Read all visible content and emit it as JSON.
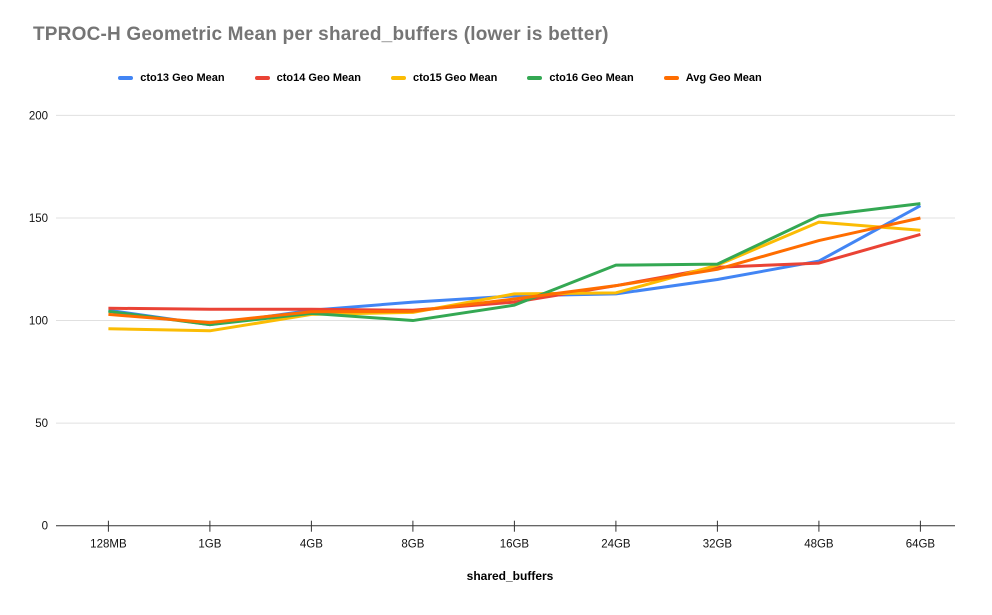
{
  "title": "TPROC-H Geometric Mean per shared_buffers (lower is better)",
  "colors": {
    "title": "#757575",
    "gridline": "#e0e0e0",
    "axis": "#333333",
    "axis_label": "#111111",
    "background": "#ffffff"
  },
  "chart_data": {
    "type": "line",
    "title": "TPROC-H Geometric Mean per shared_buffers (lower is better)",
    "xlabel": "shared_buffers",
    "ylabel": "",
    "categories": [
      "128MB",
      "1GB",
      "4GB",
      "8GB",
      "16GB",
      "24GB",
      "32GB",
      "48GB",
      "64GB"
    ],
    "series": [
      {
        "name": "cto13 Geo Mean",
        "color": "#4285F4",
        "values": [
          105,
          98,
          105,
          109,
          112,
          113,
          120,
          129,
          156
        ]
      },
      {
        "name": "cto14 Geo Mean",
        "color": "#EA4335",
        "values": [
          106,
          105.5,
          105.5,
          105,
          109,
          117,
          126,
          128,
          142
        ]
      },
      {
        "name": "cto15 Geo Mean",
        "color": "#FBBC04",
        "values": [
          96,
          95,
          103,
          104,
          113,
          113.5,
          127,
          148,
          144
        ]
      },
      {
        "name": "cto16 Geo Mean",
        "color": "#34A853",
        "values": [
          104.5,
          98,
          103.5,
          100,
          107.5,
          127,
          127.5,
          151,
          157
        ]
      },
      {
        "name": "Avg Geo Mean",
        "color": "#FF6D00",
        "values": [
          103,
          99,
          104.3,
          104.5,
          110.5,
          117,
          125,
          139,
          150
        ]
      }
    ],
    "y_ticks": [
      0,
      50,
      100,
      150,
      200
    ],
    "ylim": [
      0,
      200
    ],
    "grid": true,
    "legend_position": "top"
  }
}
